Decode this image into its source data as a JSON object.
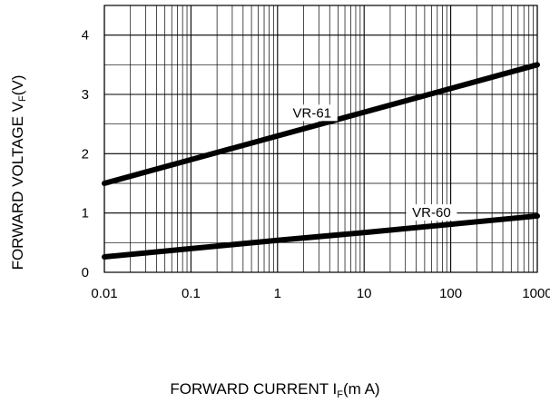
{
  "chart_data": {
    "type": "line",
    "xscale": "log",
    "xlim": [
      0.01,
      1000
    ],
    "ylim": [
      0,
      4.5
    ],
    "grid": true,
    "legend": "none",
    "x_ticks": [
      {
        "value": 0.01,
        "label": "0.01"
      },
      {
        "value": 0.1,
        "label": "0.1"
      },
      {
        "value": 1,
        "label": "1"
      },
      {
        "value": 10,
        "label": "10"
      },
      {
        "value": 100,
        "label": "100"
      },
      {
        "value": 1000,
        "label": "1000"
      }
    ],
    "y_ticks": [
      {
        "value": 0,
        "label": "0"
      },
      {
        "value": 1,
        "label": "1"
      },
      {
        "value": 2,
        "label": "2"
      },
      {
        "value": 3,
        "label": "3"
      },
      {
        "value": 4,
        "label": "4"
      }
    ],
    "ylabel": {
      "main": "FORWARD VOLTAGE V",
      "sub": "F",
      "unit": "(V)"
    },
    "xlabel": {
      "main": "FORWARD CURRENT I",
      "sub": "F",
      "unit": "(m A)"
    },
    "series": [
      {
        "name": "VR-61",
        "color": "#000000",
        "points": [
          [
            0.01,
            1.5
          ],
          [
            0.1,
            1.9
          ],
          [
            1,
            2.3
          ],
          [
            10,
            2.7
          ],
          [
            100,
            3.1
          ],
          [
            1000,
            3.5
          ]
        ],
        "label_at": 2.5
      },
      {
        "name": "VR-60",
        "color": "#000000",
        "points": [
          [
            0.01,
            0.26
          ],
          [
            0.1,
            0.4
          ],
          [
            1,
            0.54
          ],
          [
            10,
            0.67
          ],
          [
            100,
            0.81
          ],
          [
            1000,
            0.95
          ]
        ],
        "label_at": 60
      }
    ]
  }
}
